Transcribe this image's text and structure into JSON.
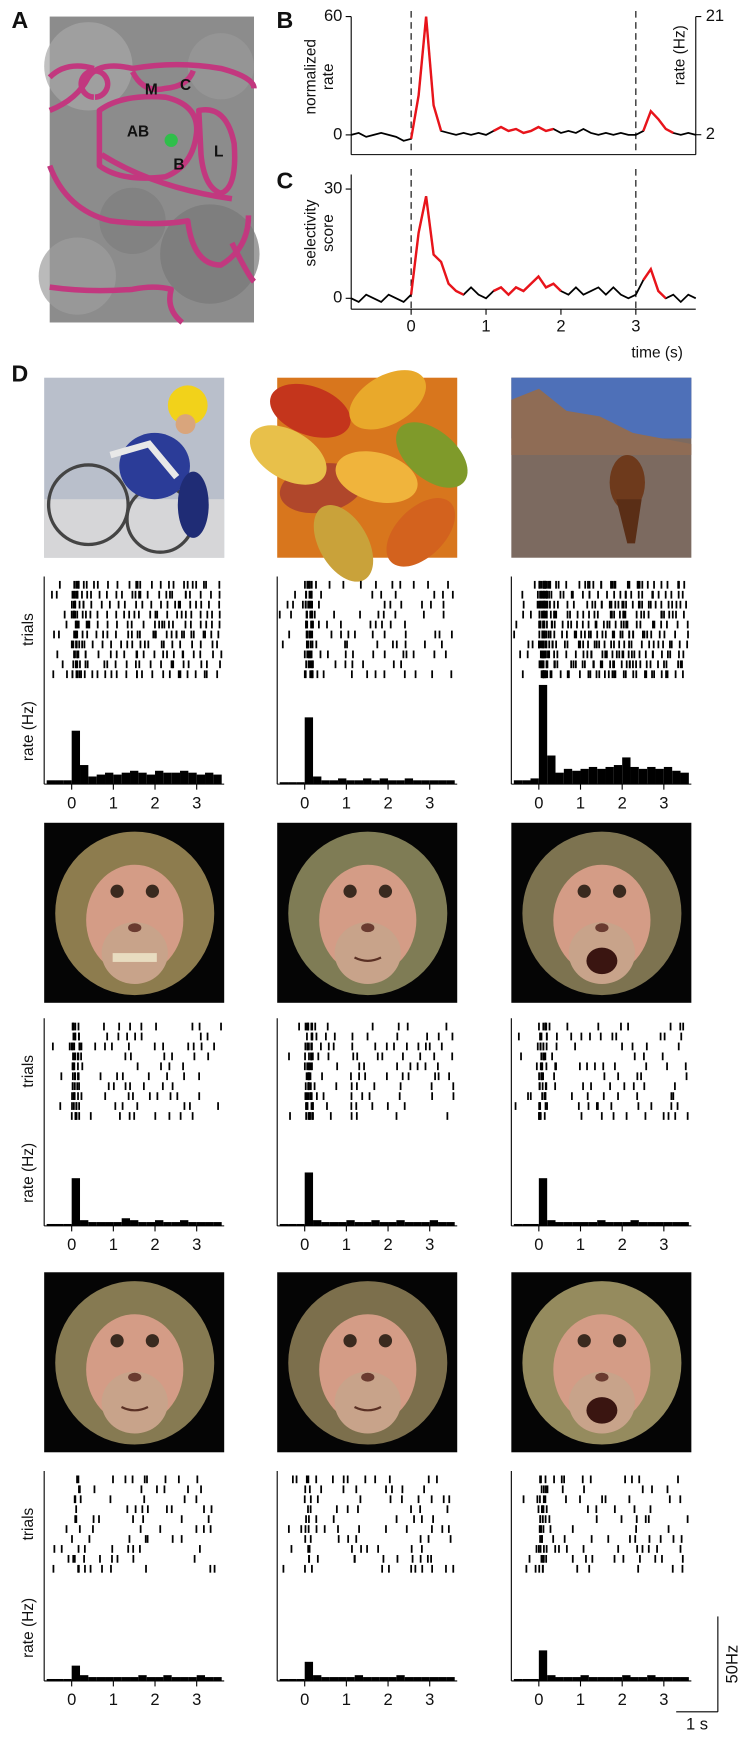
{
  "panel_labels": [
    "A",
    "B",
    "C",
    "D"
  ],
  "panel_a": {
    "regions": [
      "M",
      "C",
      "AB",
      "B",
      "L"
    ]
  },
  "chart_data": [
    {
      "type": "line",
      "ylabel": [
        "normalized",
        "rate"
      ],
      "y2label": "rate (Hz)",
      "x": [
        -0.8,
        -0.7,
        -0.6,
        -0.5,
        -0.4,
        -0.3,
        -0.2,
        -0.1,
        0,
        0.1,
        0.2,
        0.3,
        0.4,
        0.5,
        0.6,
        0.7,
        0.8,
        0.9,
        1.0,
        1.1,
        1.2,
        1.3,
        1.4,
        1.5,
        1.6,
        1.7,
        1.8,
        1.9,
        2.0,
        2.1,
        2.2,
        2.3,
        2.4,
        2.5,
        2.6,
        2.7,
        2.8,
        2.9,
        3.0,
        3.1,
        3.2,
        3.3,
        3.4,
        3.5,
        3.6,
        3.7,
        3.8
      ],
      "series": [
        {
          "color": "#000000",
          "values": [
            0,
            1,
            -1,
            0,
            1,
            0,
            -1,
            -3,
            -2,
            20,
            60,
            15,
            2,
            1,
            0,
            1,
            0,
            1,
            0,
            2,
            4,
            2,
            3,
            1,
            2,
            4,
            2,
            3,
            1,
            2,
            1,
            3,
            1,
            0,
            1,
            0,
            1,
            0,
            0,
            2,
            12,
            8,
            3,
            1,
            0,
            1,
            0
          ]
        },
        {
          "color": "#e8141b",
          "values": [
            null,
            null,
            null,
            null,
            null,
            null,
            null,
            null,
            -2,
            20,
            60,
            15,
            2,
            null,
            null,
            null,
            null,
            null,
            null,
            2,
            4,
            2,
            3,
            1,
            2,
            4,
            2,
            3,
            null,
            null,
            null,
            null,
            null,
            null,
            null,
            null,
            null,
            null,
            null,
            2,
            12,
            8,
            3,
            1,
            null,
            null,
            null
          ]
        }
      ],
      "xlim": [
        -0.8,
        3.8
      ],
      "ylim": [
        -10,
        60
      ],
      "yticks": [
        0,
        60
      ],
      "y2lim": [
        -1.2,
        21
      ],
      "y2ticks": [
        2,
        21
      ],
      "markers": [
        0,
        3
      ]
    },
    {
      "type": "line",
      "ylabel": [
        "selectivity",
        "score"
      ],
      "xlabel": "time (s)",
      "x": [
        -0.8,
        -0.7,
        -0.6,
        -0.5,
        -0.4,
        -0.3,
        -0.2,
        -0.1,
        0,
        0.1,
        0.2,
        0.3,
        0.4,
        0.5,
        0.6,
        0.7,
        0.8,
        0.9,
        1.0,
        1.1,
        1.2,
        1.3,
        1.4,
        1.5,
        1.6,
        1.7,
        1.8,
        1.9,
        2.0,
        2.1,
        2.2,
        2.3,
        2.4,
        2.5,
        2.6,
        2.7,
        2.8,
        2.9,
        3.0,
        3.1,
        3.2,
        3.3,
        3.4,
        3.5,
        3.6,
        3.7,
        3.8
      ],
      "series": [
        {
          "color": "#000000",
          "values": [
            0,
            -1,
            1,
            0,
            -1,
            1,
            0,
            -1,
            1,
            18,
            28,
            12,
            10,
            4,
            2,
            1,
            3,
            1,
            0,
            2,
            3,
            1,
            3,
            2,
            4,
            6,
            3,
            4,
            2,
            1,
            3,
            1,
            2,
            3,
            1,
            3,
            1,
            0,
            1,
            5,
            8,
            2,
            0,
            1,
            -1,
            1,
            0
          ]
        },
        {
          "color": "#e8141b",
          "values": [
            null,
            null,
            null,
            null,
            null,
            null,
            null,
            null,
            1,
            18,
            28,
            12,
            10,
            4,
            2,
            1,
            null,
            null,
            null,
            2,
            3,
            1,
            3,
            2,
            4,
            6,
            3,
            4,
            2,
            null,
            null,
            null,
            null,
            null,
            null,
            null,
            null,
            null,
            null,
            5,
            8,
            2,
            0,
            null,
            null,
            null,
            null
          ]
        }
      ],
      "xlim": [
        -0.8,
        3.8
      ],
      "xticks": [
        0,
        1,
        2,
        3
      ],
      "ylim": [
        -3,
        34
      ],
      "yticks": [
        0,
        30
      ],
      "markers": [
        0,
        3
      ]
    },
    {
      "type": "histogram",
      "raster_label": "trials",
      "ylabel": "rate (Hz)",
      "color": "#000000",
      "bins": [
        -0.6,
        -0.4,
        -0.2,
        0,
        0.2,
        0.4,
        0.6,
        0.8,
        1.0,
        1.2,
        1.4,
        1.6,
        1.8,
        2.0,
        2.2,
        2.4,
        2.6,
        2.8,
        3.0,
        3.2,
        3.4,
        3.6
      ],
      "values": [
        2,
        2,
        2,
        28,
        10,
        4,
        5,
        6,
        5,
        6,
        7,
        6,
        5,
        7,
        6,
        6,
        7,
        6,
        5,
        6,
        5
      ],
      "xlim": [
        -0.66,
        3.66
      ],
      "ylim": [
        0,
        55
      ],
      "xticks": [
        0,
        1,
        2,
        3
      ]
    },
    {
      "type": "histogram",
      "color": "#000000",
      "bins": [
        -0.6,
        -0.4,
        -0.2,
        0,
        0.2,
        0.4,
        0.6,
        0.8,
        1.0,
        1.2,
        1.4,
        1.6,
        1.8,
        2.0,
        2.2,
        2.4,
        2.6,
        2.8,
        3.0,
        3.2,
        3.4,
        3.6
      ],
      "values": [
        1,
        1,
        1,
        35,
        4,
        2,
        2,
        3,
        2,
        2,
        3,
        2,
        3,
        2,
        2,
        3,
        2,
        2,
        2,
        2,
        2
      ],
      "xlim": [
        -0.66,
        3.66
      ],
      "ylim": [
        0,
        55
      ],
      "xticks": [
        0,
        1,
        2,
        3
      ]
    },
    {
      "type": "histogram",
      "color": "#000000",
      "bins": [
        -0.6,
        -0.4,
        -0.2,
        0,
        0.2,
        0.4,
        0.6,
        0.8,
        1.0,
        1.2,
        1.4,
        1.6,
        1.8,
        2.0,
        2.2,
        2.4,
        2.6,
        2.8,
        3.0,
        3.2,
        3.4,
        3.6
      ],
      "values": [
        2,
        2,
        3,
        52,
        15,
        6,
        8,
        7,
        8,
        9,
        8,
        9,
        10,
        14,
        9,
        8,
        9,
        8,
        9,
        7,
        6
      ],
      "xlim": [
        -0.66,
        3.66
      ],
      "ylim": [
        0,
        55
      ],
      "xticks": [
        0,
        1,
        2,
        3
      ]
    },
    {
      "type": "histogram",
      "raster_label": "trials",
      "ylabel": "rate (Hz)",
      "color": "#000000",
      "bins": [
        -0.6,
        -0.4,
        -0.2,
        0,
        0.2,
        0.4,
        0.6,
        0.8,
        1.0,
        1.2,
        1.4,
        1.6,
        1.8,
        2.0,
        2.2,
        2.4,
        2.6,
        2.8,
        3.0,
        3.2,
        3.4,
        3.6
      ],
      "values": [
        1,
        1,
        1,
        25,
        3,
        2,
        2,
        2,
        2,
        4,
        3,
        2,
        2,
        3,
        2,
        2,
        3,
        2,
        2,
        2,
        2
      ],
      "xlim": [
        -0.66,
        3.66
      ],
      "ylim": [
        0,
        55
      ],
      "xticks": [
        0,
        1,
        2,
        3
      ]
    },
    {
      "type": "histogram",
      "color": "#000000",
      "bins": [
        -0.6,
        -0.4,
        -0.2,
        0,
        0.2,
        0.4,
        0.6,
        0.8,
        1.0,
        1.2,
        1.4,
        1.6,
        1.8,
        2.0,
        2.2,
        2.4,
        2.6,
        2.8,
        3.0,
        3.2,
        3.4,
        3.6
      ],
      "values": [
        1,
        1,
        1,
        28,
        3,
        2,
        2,
        2,
        3,
        2,
        2,
        3,
        2,
        2,
        3,
        2,
        2,
        2,
        3,
        2,
        2
      ],
      "xlim": [
        -0.66,
        3.66
      ],
      "ylim": [
        0,
        55
      ],
      "xticks": [
        0,
        1,
        2,
        3
      ]
    },
    {
      "type": "histogram",
      "color": "#000000",
      "bins": [
        -0.6,
        -0.4,
        -0.2,
        0,
        0.2,
        0.4,
        0.6,
        0.8,
        1.0,
        1.2,
        1.4,
        1.6,
        1.8,
        2.0,
        2.2,
        2.4,
        2.6,
        2.8,
        3.0,
        3.2,
        3.4,
        3.6
      ],
      "values": [
        1,
        1,
        1,
        25,
        3,
        2,
        2,
        2,
        2,
        2,
        3,
        2,
        2,
        2,
        3,
        2,
        2,
        2,
        2,
        2,
        2
      ],
      "xlim": [
        -0.66,
        3.66
      ],
      "ylim": [
        0,
        55
      ],
      "xticks": [
        0,
        1,
        2,
        3
      ]
    },
    {
      "type": "histogram",
      "raster_label": "trials",
      "ylabel": "rate (Hz)",
      "color": "#000000",
      "bins": [
        -0.6,
        -0.4,
        -0.2,
        0,
        0.2,
        0.4,
        0.6,
        0.8,
        1.0,
        1.2,
        1.4,
        1.6,
        1.8,
        2.0,
        2.2,
        2.4,
        2.6,
        2.8,
        3.0,
        3.2,
        3.4,
        3.6
      ],
      "values": [
        1,
        1,
        1,
        8,
        3,
        2,
        2,
        2,
        2,
        2,
        2,
        3,
        2,
        2,
        3,
        2,
        2,
        2,
        3,
        2,
        2
      ],
      "xlim": [
        -0.66,
        3.66
      ],
      "ylim": [
        0,
        55
      ],
      "xticks": [
        0,
        1,
        2,
        3
      ]
    },
    {
      "type": "histogram",
      "color": "#000000",
      "bins": [
        -0.6,
        -0.4,
        -0.2,
        0,
        0.2,
        0.4,
        0.6,
        0.8,
        1.0,
        1.2,
        1.4,
        1.6,
        1.8,
        2.0,
        2.2,
        2.4,
        2.6,
        2.8,
        3.0,
        3.2,
        3.4,
        3.6
      ],
      "values": [
        1,
        1,
        1,
        10,
        3,
        2,
        2,
        2,
        2,
        3,
        2,
        2,
        2,
        2,
        3,
        2,
        2,
        2,
        2,
        2,
        2
      ],
      "xlim": [
        -0.66,
        3.66
      ],
      "ylim": [
        0,
        55
      ],
      "xticks": [
        0,
        1,
        2,
        3
      ]
    },
    {
      "type": "histogram",
      "color": "#000000",
      "bins": [
        -0.6,
        -0.4,
        -0.2,
        0,
        0.2,
        0.4,
        0.6,
        0.8,
        1.0,
        1.2,
        1.4,
        1.6,
        1.8,
        2.0,
        2.2,
        2.4,
        2.6,
        2.8,
        3.0,
        3.2,
        3.4,
        3.6
      ],
      "values": [
        1,
        1,
        1,
        16,
        3,
        2,
        2,
        2,
        3,
        2,
        2,
        2,
        2,
        3,
        2,
        2,
        3,
        2,
        2,
        2,
        2
      ],
      "xlim": [
        -0.66,
        3.66
      ],
      "ylim": [
        0,
        55
      ],
      "xticks": [
        0,
        1,
        2,
        3
      ]
    }
  ],
  "panel_d": {
    "scale_bar": {
      "rate": {
        "value": 50,
        "label": "50Hz"
      },
      "time": {
        "value": 1,
        "label": "1 s"
      }
    }
  }
}
